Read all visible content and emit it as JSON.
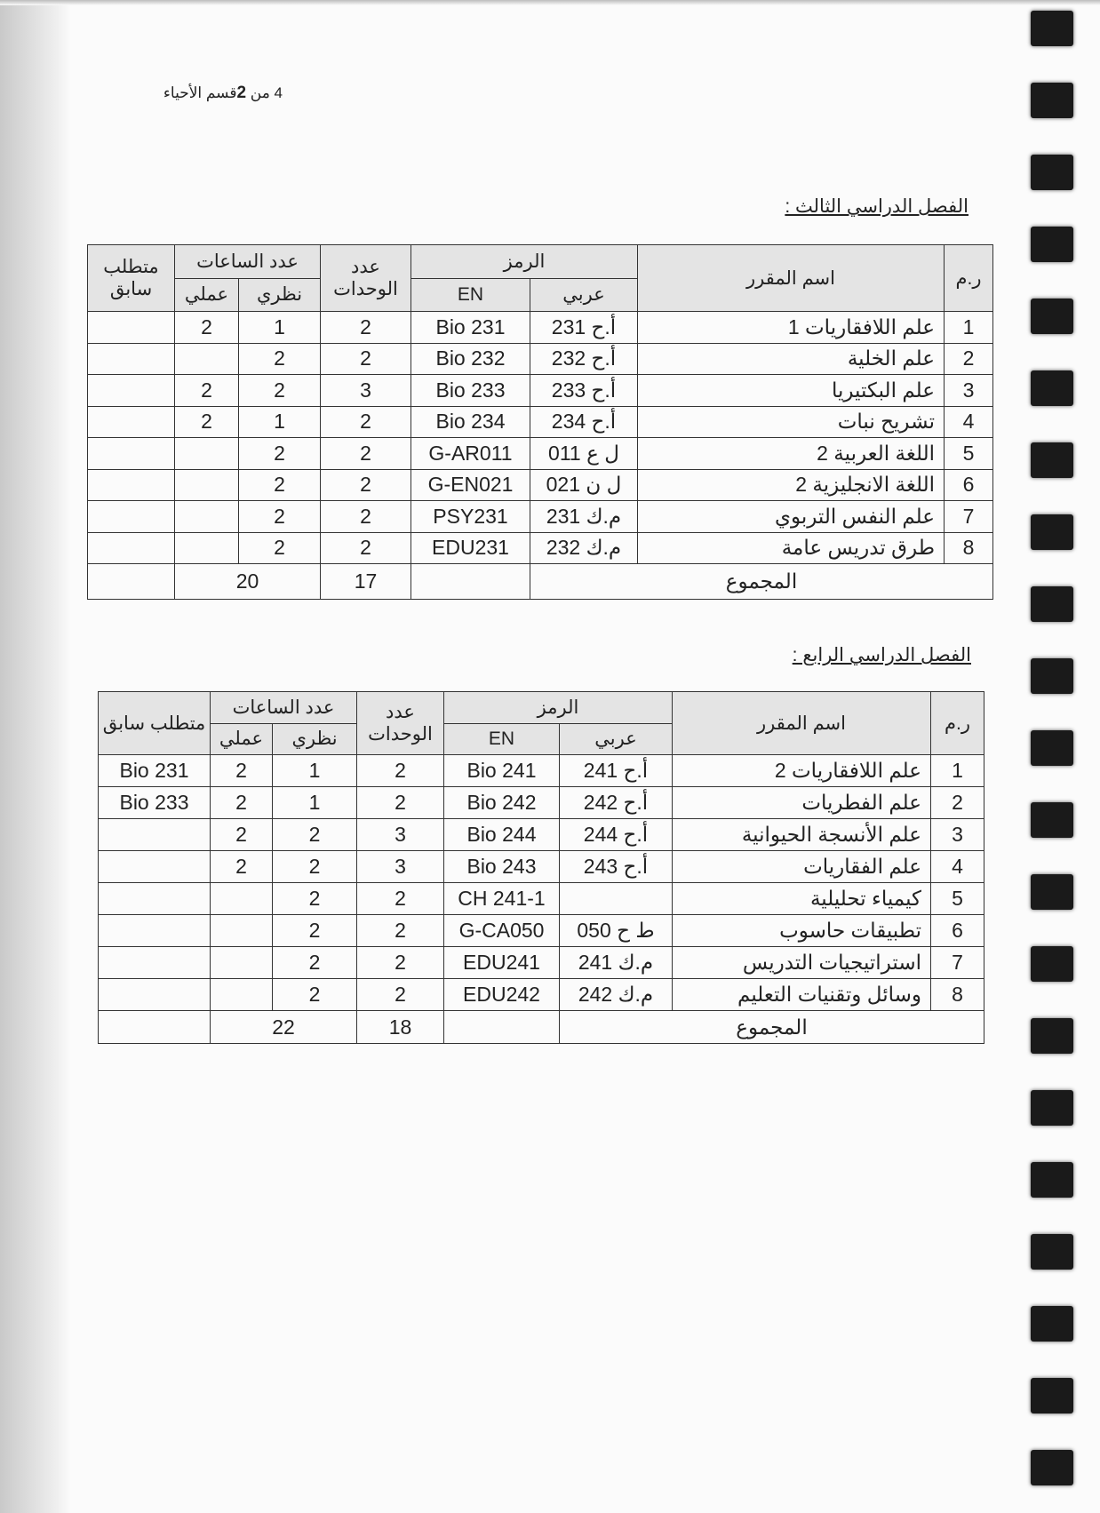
{
  "page_header": {
    "text_prefix": "4 من ",
    "bold": "2",
    "text_suffix": "قسم الأحياء"
  },
  "columns": {
    "no": "ر.م",
    "name": "اسم المقرر",
    "code": "الرمز",
    "code_ar": "عربي",
    "code_en": "EN",
    "units": "عدد الوحدات",
    "hours": "عدد الساعات",
    "theory": "نظري",
    "practical": "عملي",
    "prereq": "متطلب سابق",
    "total": "المجموع"
  },
  "semesters": [
    {
      "title": "الفصل الدراسي الثالث :",
      "rows": [
        {
          "no": "1",
          "name": "علم اللافقاريات 1",
          "ar": "أ.ح 231",
          "en": "Bio 231",
          "units": "2",
          "theory": "1",
          "practical": "2",
          "prereq": ""
        },
        {
          "no": "2",
          "name": "علم الخلية",
          "ar": "أ.ح 232",
          "en": "Bio 232",
          "units": "2",
          "theory": "2",
          "practical": "",
          "prereq": ""
        },
        {
          "no": "3",
          "name": "علم البكتيريا",
          "ar": "أ.ح 233",
          "en": "Bio 233",
          "units": "3",
          "theory": "2",
          "practical": "2",
          "prereq": ""
        },
        {
          "no": "4",
          "name": "تشريح نبات",
          "ar": "أ.ح 234",
          "en": "Bio 234",
          "units": "2",
          "theory": "1",
          "practical": "2",
          "prereq": ""
        },
        {
          "no": "5",
          "name": "اللغة العربية 2",
          "ar": "ل ع 011",
          "en": "G-AR011",
          "units": "2",
          "theory": "2",
          "practical": "",
          "prereq": ""
        },
        {
          "no": "6",
          "name": "اللغة الانجليزية 2",
          "ar": "ل ن 021",
          "en": "G-EN021",
          "units": "2",
          "theory": "2",
          "practical": "",
          "prereq": ""
        },
        {
          "no": "7",
          "name": "علم النفس التربوي",
          "ar": "م.ك 231",
          "en": "PSY231",
          "units": "2",
          "theory": "2",
          "practical": "",
          "prereq": ""
        },
        {
          "no": "8",
          "name": "طرق تدريس عامة",
          "ar": "م.ك 232",
          "en": "EDU231",
          "units": "2",
          "theory": "2",
          "practical": "",
          "prereq": ""
        }
      ],
      "total_units": "17",
      "total_hours": "20"
    },
    {
      "title": "الفصل الدراسي الرابع :",
      "rows": [
        {
          "no": "1",
          "name": "علم اللافقاريات 2",
          "ar": "أ.ح 241",
          "en": "Bio 241",
          "units": "2",
          "theory": "1",
          "practical": "2",
          "prereq": "Bio 231"
        },
        {
          "no": "2",
          "name": "علم الفطريات",
          "ar": "أ.ح 242",
          "en": "Bio 242",
          "units": "2",
          "theory": "1",
          "practical": "2",
          "prereq": "Bio 233"
        },
        {
          "no": "3",
          "name": "علم الأنسجة الحيوانية",
          "ar": "أ.ح 244",
          "en": "Bio 244",
          "units": "3",
          "theory": "2",
          "practical": "2",
          "prereq": ""
        },
        {
          "no": "4",
          "name": "علم الفقاريات",
          "ar": "أ.ح 243",
          "en": "Bio 243",
          "units": "3",
          "theory": "2",
          "practical": "2",
          "prereq": ""
        },
        {
          "no": "5",
          "name": "كيمياء تحليلية",
          "ar": "",
          "en": "CH 241-1",
          "units": "2",
          "theory": "2",
          "practical": "",
          "prereq": ""
        },
        {
          "no": "6",
          "name": "تطبيقات حاسوب",
          "ar": "ط ح 050",
          "en": "G-CA050",
          "units": "2",
          "theory": "2",
          "practical": "",
          "prereq": ""
        },
        {
          "no": "7",
          "name": "استراتيجيات التدريس",
          "ar": "م.ك 241",
          "en": "EDU241",
          "units": "2",
          "theory": "2",
          "practical": "",
          "prereq": ""
        },
        {
          "no": "8",
          "name": "وسائل وتقنيات التعليم",
          "ar": "م.ك 242",
          "en": "EDU242",
          "units": "2",
          "theory": "2",
          "practical": "",
          "prereq": ""
        }
      ],
      "total_units": "18",
      "total_hours": "22"
    }
  ]
}
